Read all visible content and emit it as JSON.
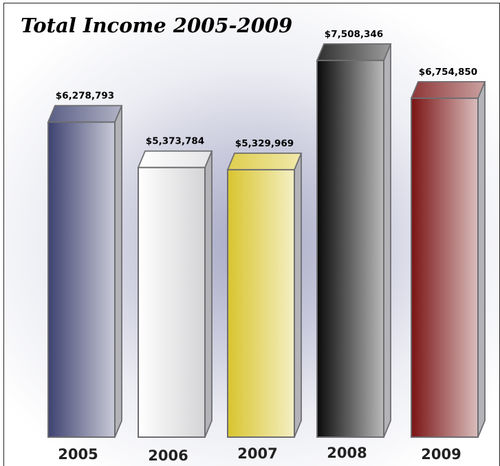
{
  "chart_data": {
    "type": "bar",
    "title": "Total Income 2005-2009",
    "categories": [
      "2005",
      "2006",
      "2007",
      "2008",
      "2009"
    ],
    "values": [
      6278793,
      5373784,
      5329969,
      7508346,
      6754850
    ],
    "value_labels": [
      "$6,278,793",
      "$5,373,784",
      "$5,329,969",
      "$7,508,346",
      "$6,754,850"
    ],
    "ylim": [
      0,
      8000000
    ],
    "grid": false,
    "legend": "none",
    "bar_colors": [
      "#3d4170",
      "#ffffff",
      "#d9c52e",
      "#0a0a0a",
      "#7a1313"
    ]
  }
}
